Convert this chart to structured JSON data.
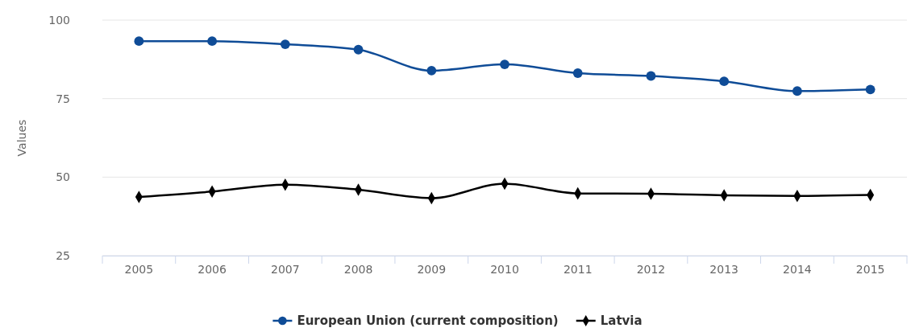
{
  "chart_data": {
    "type": "line",
    "ylabel": "Values",
    "categories": [
      "2005",
      "2006",
      "2007",
      "2008",
      "2009",
      "2010",
      "2011",
      "2012",
      "2013",
      "2014",
      "2015"
    ],
    "series": [
      {
        "name": "European Union (current composition)",
        "color": "#0f4c97",
        "marker": "circle",
        "values": [
          93.3,
          93.3,
          92.3,
          90.6,
          83.9,
          85.9,
          83.1,
          82.2,
          80.5,
          77.4,
          77.9
        ]
      },
      {
        "name": "Latvia",
        "color": "#000000",
        "marker": "diamond",
        "values": [
          43.7,
          45.4,
          47.6,
          46.0,
          43.3,
          47.9,
          44.8,
          44.7,
          44.2,
          44.0,
          44.3
        ]
      }
    ],
    "ylim": [
      25,
      100
    ],
    "yticks": [
      25,
      50,
      75,
      100
    ],
    "grid": "y",
    "legend": "bottom"
  }
}
